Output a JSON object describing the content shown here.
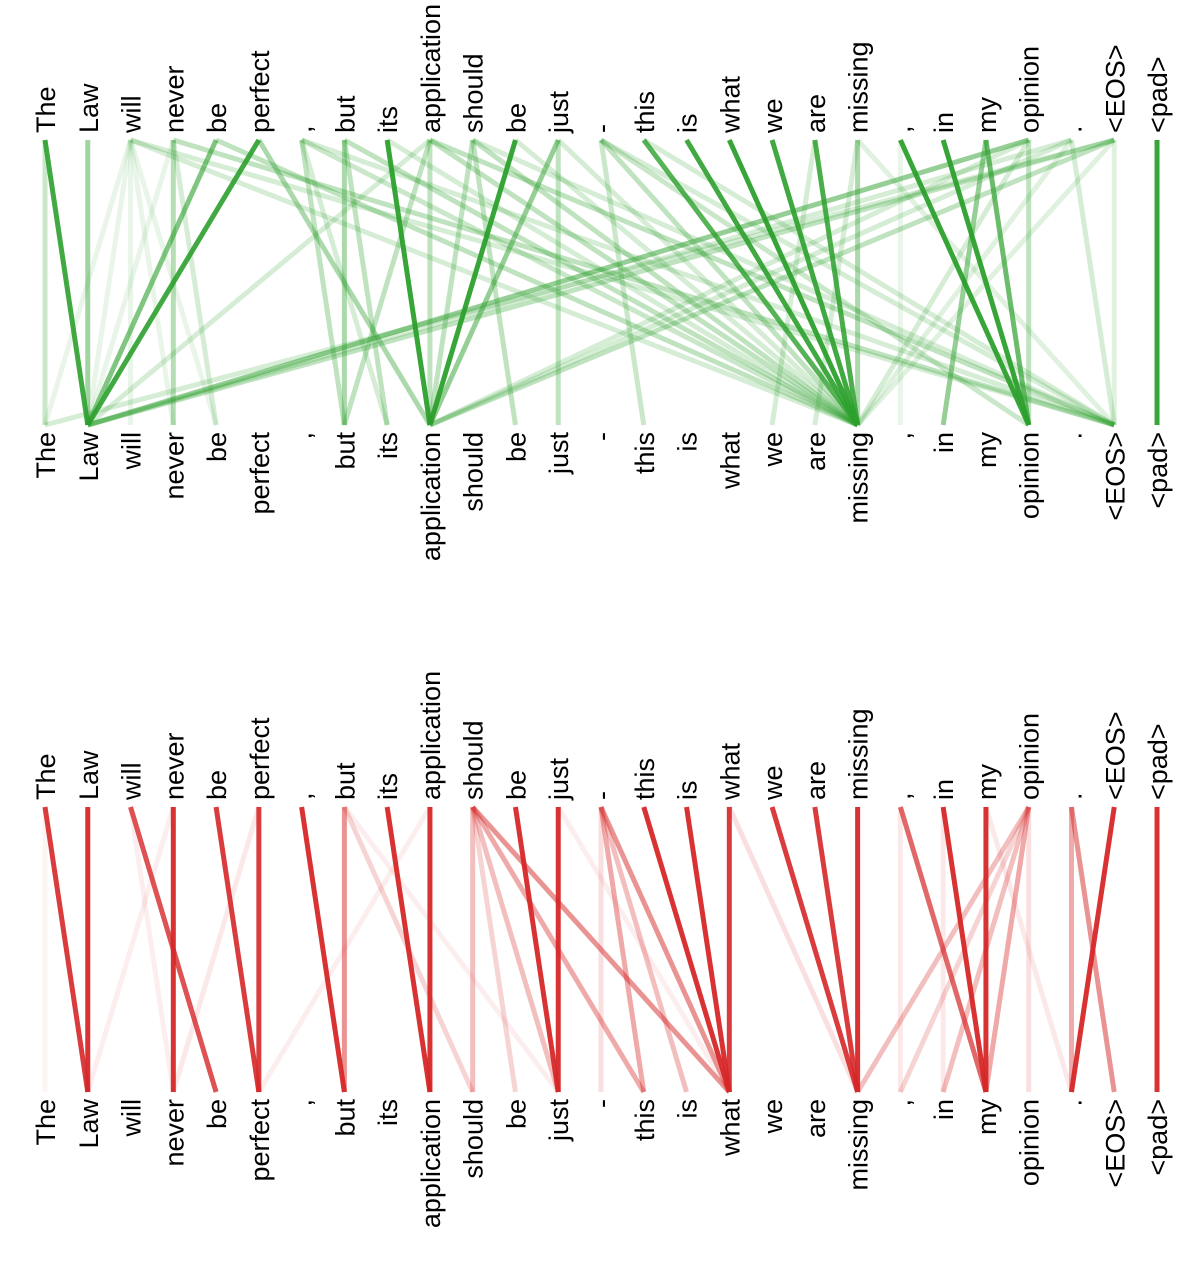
{
  "tokens": [
    "The",
    "Law",
    "will",
    "never",
    "be",
    "perfect",
    ",",
    "but",
    "its",
    "application",
    "should",
    "be",
    "just",
    "-",
    "this",
    "is",
    "what",
    "we",
    "are",
    "missing",
    ",",
    "in",
    "my",
    "opinion",
    ".",
    "<EOS>",
    "<pad>"
  ],
  "colors": {
    "green": "#2ca02c",
    "red": "#d62728"
  },
  "panels": [
    {
      "id": "green-panel",
      "color": "green",
      "edges": [
        [
          0,
          0,
          0.25
        ],
        [
          0,
          1,
          0.9
        ],
        [
          1,
          1,
          0.45
        ],
        [
          2,
          0,
          0.1
        ],
        [
          2,
          1,
          0.1
        ],
        [
          2,
          2,
          0.1
        ],
        [
          2,
          3,
          0.1
        ],
        [
          2,
          4,
          0.1
        ],
        [
          2,
          19,
          0.2
        ],
        [
          2,
          25,
          0.2
        ],
        [
          3,
          1,
          0.1
        ],
        [
          3,
          3,
          0.35
        ],
        [
          3,
          4,
          0.2
        ],
        [
          3,
          25,
          0.3
        ],
        [
          4,
          1,
          0.6
        ],
        [
          4,
          19,
          0.3
        ],
        [
          5,
          1,
          0.9
        ],
        [
          5,
          9,
          0.4
        ],
        [
          6,
          7,
          0.3
        ],
        [
          6,
          8,
          0.2
        ],
        [
          6,
          19,
          0.25
        ],
        [
          6,
          25,
          0.2
        ],
        [
          7,
          7,
          0.4
        ],
        [
          7,
          8,
          0.3
        ],
        [
          7,
          19,
          0.3
        ],
        [
          8,
          9,
          0.95
        ],
        [
          8,
          19,
          0.2
        ],
        [
          9,
          1,
          0.2
        ],
        [
          9,
          7,
          0.3
        ],
        [
          9,
          9,
          0.3
        ],
        [
          9,
          19,
          0.3
        ],
        [
          9,
          25,
          0.3
        ],
        [
          10,
          9,
          0.3
        ],
        [
          10,
          11,
          0.3
        ],
        [
          10,
          19,
          0.3
        ],
        [
          10,
          25,
          0.2
        ],
        [
          11,
          9,
          0.95
        ],
        [
          11,
          19,
          0.2
        ],
        [
          12,
          9,
          0.5
        ],
        [
          12,
          12,
          0.3
        ],
        [
          12,
          19,
          0.2
        ],
        [
          13,
          14,
          0.25
        ],
        [
          13,
          19,
          0.3
        ],
        [
          13,
          23,
          0.25
        ],
        [
          13,
          25,
          0.2
        ],
        [
          14,
          19,
          0.8
        ],
        [
          14,
          25,
          0.2
        ],
        [
          15,
          19,
          0.9
        ],
        [
          16,
          19,
          0.95
        ],
        [
          17,
          19,
          0.9
        ],
        [
          18,
          17,
          0.2
        ],
        [
          18,
          19,
          0.85
        ],
        [
          19,
          18,
          0.2
        ],
        [
          19,
          19,
          0.4
        ],
        [
          19,
          25,
          0.15
        ],
        [
          20,
          20,
          0.1
        ],
        [
          20,
          23,
          0.95
        ],
        [
          21,
          23,
          0.95
        ],
        [
          22,
          21,
          0.5
        ],
        [
          22,
          23,
          0.7
        ],
        [
          23,
          1,
          0.5
        ],
        [
          23,
          9,
          0.2
        ],
        [
          23,
          19,
          0.2
        ],
        [
          23,
          23,
          0.3
        ],
        [
          24,
          1,
          0.2
        ],
        [
          24,
          9,
          0.2
        ],
        [
          24,
          19,
          0.15
        ],
        [
          24,
          25,
          0.2
        ],
        [
          25,
          0,
          0.2
        ],
        [
          25,
          1,
          0.3
        ],
        [
          25,
          9,
          0.3
        ],
        [
          25,
          19,
          0.15
        ],
        [
          25,
          25,
          0.15
        ],
        [
          26,
          26,
          0.95
        ]
      ]
    },
    {
      "id": "red-panel",
      "color": "red",
      "edges": [
        [
          0,
          0,
          0.05
        ],
        [
          0,
          1,
          0.9
        ],
        [
          1,
          1,
          0.95
        ],
        [
          2,
          3,
          0.08
        ],
        [
          2,
          4,
          0.8
        ],
        [
          3,
          1,
          0.08
        ],
        [
          3,
          3,
          0.95
        ],
        [
          4,
          5,
          0.9
        ],
        [
          5,
          3,
          0.1
        ],
        [
          5,
          5,
          0.9
        ],
        [
          6,
          7,
          0.95
        ],
        [
          7,
          7,
          0.5
        ],
        [
          7,
          10,
          0.2
        ],
        [
          7,
          12,
          0.08
        ],
        [
          8,
          9,
          0.95
        ],
        [
          9,
          9,
          0.95
        ],
        [
          9,
          5,
          0.08
        ],
        [
          10,
          10,
          0.3
        ],
        [
          10,
          11,
          0.2
        ],
        [
          10,
          12,
          0.3
        ],
        [
          10,
          14,
          0.4
        ],
        [
          10,
          16,
          0.5
        ],
        [
          11,
          12,
          0.95
        ],
        [
          12,
          12,
          0.95
        ],
        [
          12,
          16,
          0.08
        ],
        [
          13,
          13,
          0.15
        ],
        [
          13,
          14,
          0.4
        ],
        [
          13,
          15,
          0.3
        ],
        [
          13,
          16,
          0.5
        ],
        [
          14,
          16,
          0.95
        ],
        [
          15,
          16,
          0.95
        ],
        [
          16,
          16,
          0.9
        ],
        [
          16,
          19,
          0.15
        ],
        [
          17,
          19,
          0.9
        ],
        [
          18,
          19,
          0.9
        ],
        [
          19,
          19,
          0.95
        ],
        [
          20,
          20,
          0.1
        ],
        [
          20,
          22,
          0.7
        ],
        [
          21,
          21,
          0.1
        ],
        [
          21,
          22,
          0.95
        ],
        [
          22,
          22,
          0.95
        ],
        [
          22,
          24,
          0.1
        ],
        [
          23,
          19,
          0.3
        ],
        [
          23,
          20,
          0.2
        ],
        [
          23,
          21,
          0.3
        ],
        [
          23,
          22,
          0.4
        ],
        [
          23,
          23,
          0.15
        ],
        [
          24,
          24,
          0.4
        ],
        [
          24,
          25,
          0.5
        ],
        [
          25,
          24,
          0.95
        ],
        [
          26,
          26,
          0.95
        ]
      ]
    }
  ]
}
